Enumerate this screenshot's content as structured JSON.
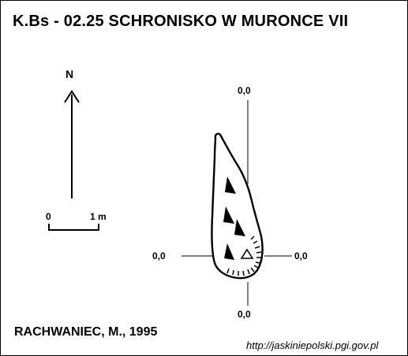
{
  "title": "K.Bs - 02.25  SCHRONISKO W MURONCE VII",
  "north_label": "N",
  "scale_bar": {
    "start_label": "0",
    "end_label": "1 m"
  },
  "elevations": {
    "top": "0,0",
    "left": "0,0",
    "right": "0,0",
    "bottom": "0,0"
  },
  "author": "RACHWANIEC, M., 1995",
  "source_url": "http://jaskiniepolski.pgi.gov.pl",
  "icons": [
    "north-arrow-icon",
    "entrance-triangle-icon",
    "slope-triangle-icon"
  ],
  "colors": {
    "ink": "#000000",
    "background": "#ffffff"
  }
}
